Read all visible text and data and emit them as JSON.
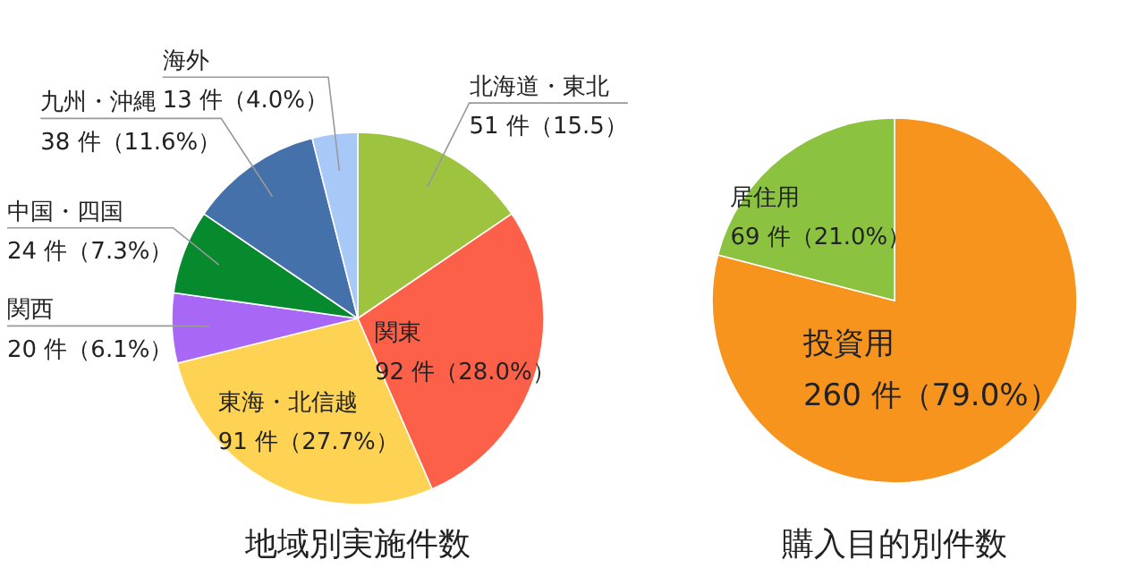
{
  "chart_data": [
    {
      "type": "pie",
      "title": "地域別実施件数",
      "categories": [
        "北海道・東北",
        "関東",
        "東海・北信越",
        "関西",
        "中国・四国",
        "九州・沖縄",
        "海外"
      ],
      "values": [
        51,
        92,
        91,
        20,
        24,
        38,
        13
      ],
      "value_labels": [
        "51 件（15.5）",
        "92 件（28.0%）",
        "91 件（27.7%）",
        "20 件（6.1%）",
        "24 件（7.3%）",
        "38 件（11.6%）",
        "13 件（4.0%）"
      ],
      "colors": [
        "#9dc33f",
        "#fd6049",
        "#fed353",
        "#a967f5",
        "#07892e",
        "#4471a9",
        "#a8c8f8"
      ]
    },
    {
      "type": "pie",
      "title": "購入目的別件数",
      "categories": [
        "投資用",
        "居住用"
      ],
      "values": [
        260,
        69
      ],
      "value_labels": [
        "260 件（79.0%）",
        "69 件（21.0%）"
      ],
      "colors": [
        "#f7941e",
        "#8bc23f"
      ]
    }
  ]
}
